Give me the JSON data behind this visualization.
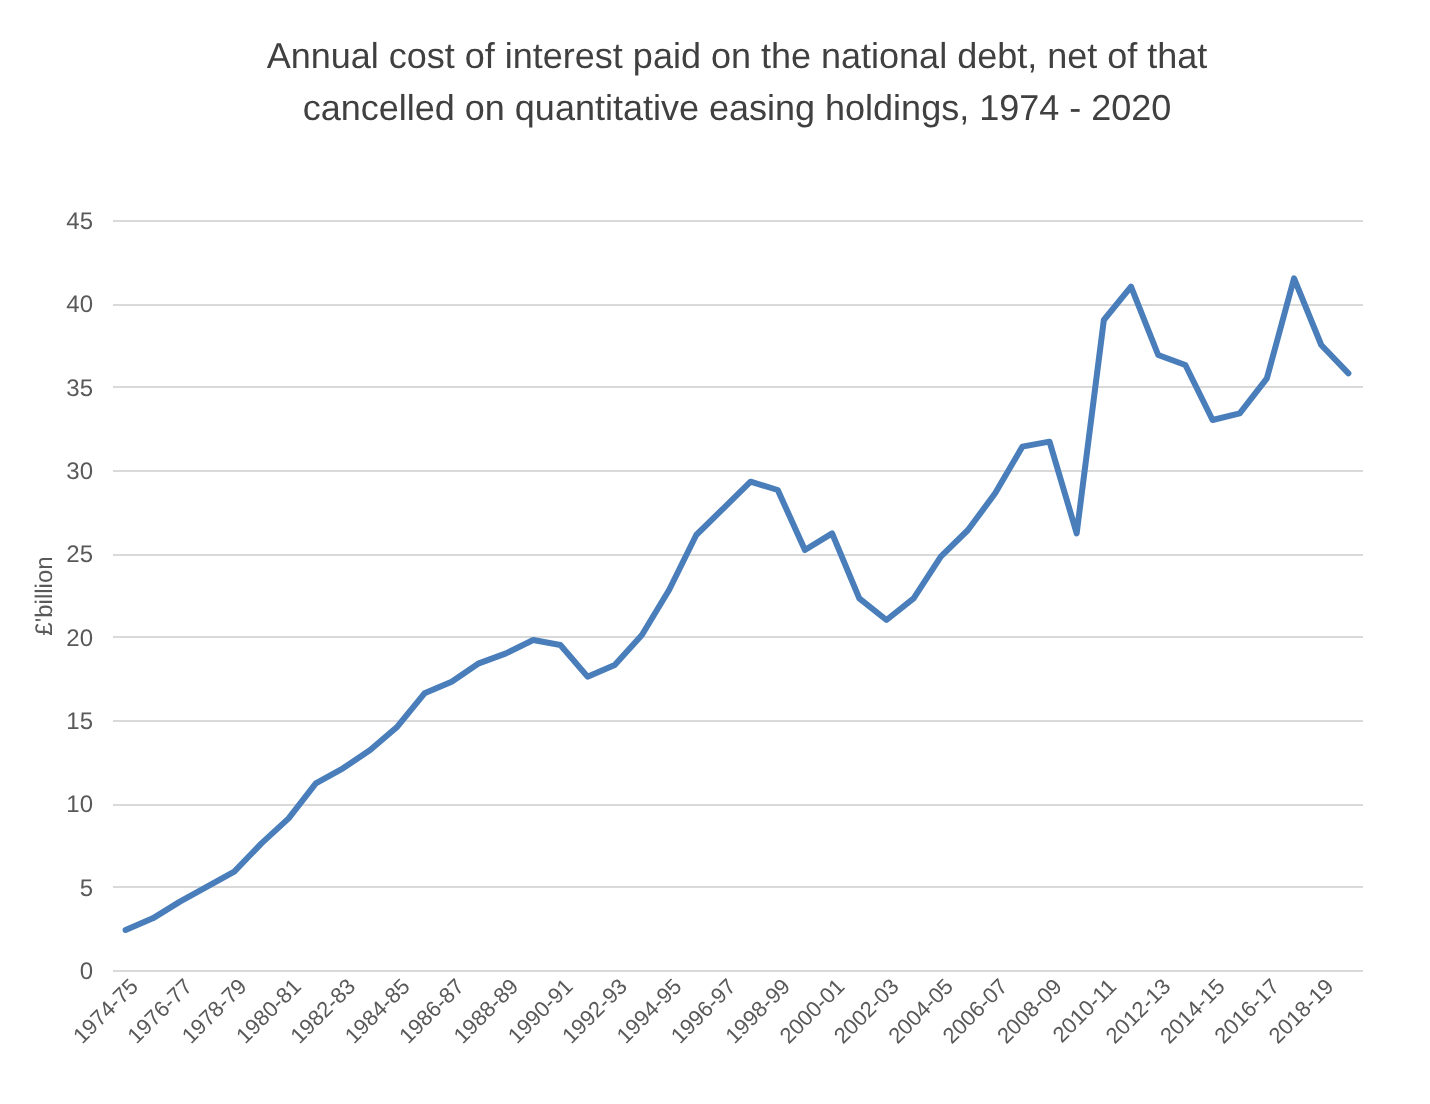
{
  "chart_data": {
    "type": "line",
    "title": [
      "Annual cost of interest paid on the national debt, net of that",
      "cancelled on quantitative easing holdings, 1974 - 2020"
    ],
    "ylabel": "£'billion",
    "categories": [
      "1974-75",
      null,
      "1976-77",
      null,
      "1978-79",
      null,
      "1980-81",
      null,
      "1982-83",
      null,
      "1984-85",
      null,
      "1986-87",
      null,
      "1988-89",
      null,
      "1990-91",
      null,
      "1992-93",
      null,
      "1994-95",
      null,
      "1996-97",
      null,
      "1998-99",
      null,
      "2000-01",
      null,
      "2002-03",
      null,
      "2004-05",
      null,
      "2006-07",
      null,
      "2008-09",
      null,
      "2010-11",
      null,
      "2012-13",
      null,
      "2014-15",
      null,
      "2016-17",
      null,
      "2018-19",
      null
    ],
    "series": [
      {
        "color": "#4a7ebb",
        "values": [
          2.4,
          3.1,
          4.1,
          5.0,
          5.9,
          7.6,
          9.1,
          11.2,
          12.1,
          13.2,
          14.6,
          16.6,
          17.3,
          18.4,
          19.0,
          19.8,
          19.5,
          17.6,
          18.3,
          20.1,
          22.8,
          26.1,
          27.7,
          29.3,
          28.8,
          25.2,
          26.2,
          22.3,
          21.0,
          22.3,
          24.8,
          26.4,
          28.6,
          31.4,
          31.7,
          26.2,
          39.0,
          41.0,
          36.9,
          36.3,
          33.0,
          33.4,
          35.5,
          41.5,
          37.5,
          35.8
        ]
      }
    ],
    "ylim": [
      0,
      45
    ],
    "yticks": [
      0,
      5,
      10,
      15,
      20,
      25,
      30,
      35,
      40,
      45
    ],
    "grid": "y",
    "marker": "none",
    "line_style": "solid"
  }
}
